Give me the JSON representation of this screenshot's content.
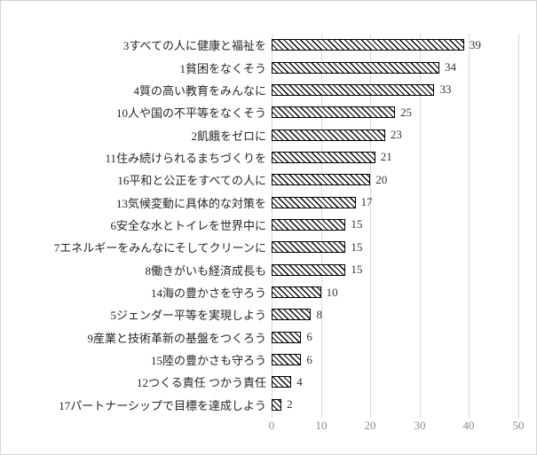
{
  "chart_data": {
    "type": "bar",
    "orientation": "horizontal",
    "title": "",
    "xlabel": "",
    "ylabel": "",
    "xlim": [
      0,
      50
    ],
    "x_ticks": [
      0,
      10,
      20,
      30,
      40,
      50
    ],
    "grid": "vertical",
    "legend": "none",
    "bar_style": "diagonal-hatch-outline",
    "categories": [
      "3すべての人に健康と福祉を",
      "1貧困をなくそう",
      "4質の高い教育をみんなに",
      "10人や国の不平等をなくそう",
      "2飢餓をゼロに",
      "11住み続けられるまちづくりを",
      "16平和と公正をすべての人に",
      "13気候変動に具体的な対策を",
      "6安全な水とトイレを世界中に",
      "7エネルギーをみんなにそしてクリーンに",
      "8働きがいも経済成長も",
      "14海の豊かさを守ろう",
      "5ジェンダー平等を実現しよう",
      "9産業と技術革新の基盤をつくろう",
      "15陸の豊かさも守ろう",
      "12つくる責任 つかう責任",
      "17パートナーシップで目標を達成しよう"
    ],
    "values": [
      39,
      34,
      33,
      25,
      23,
      21,
      20,
      17,
      15,
      15,
      15,
      10,
      8,
      6,
      6,
      4,
      2
    ],
    "data_labels_visible": true,
    "colors": {
      "bar_fill": "#ffffff",
      "bar_hatch": "#000000",
      "bar_border": "#000000",
      "gridline": "#d9d9d9",
      "category_label_text": "#262626",
      "value_label_text": "#333333",
      "axis_tick_text": "#8c8c8c",
      "background": "#ffffff",
      "frame_border": "#d4d4d4"
    }
  }
}
